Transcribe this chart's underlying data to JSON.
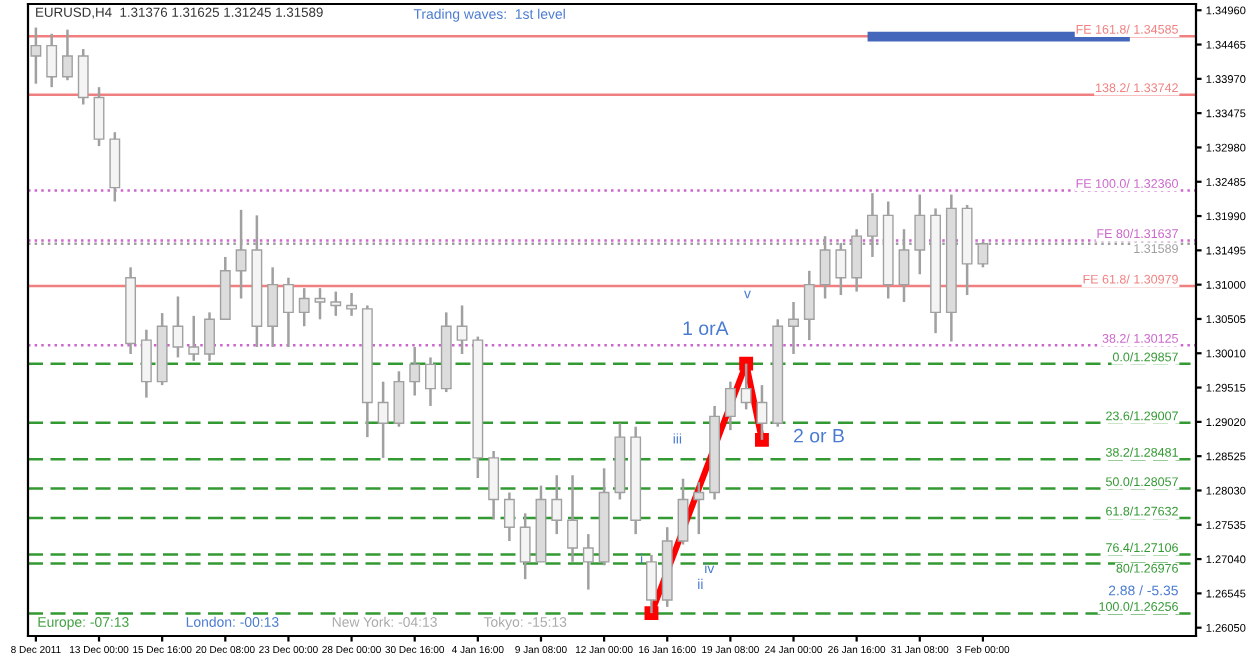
{
  "chart_data": {
    "type": "candlestick",
    "title": "EURUSD,H4  1.31376 1.31625 1.31245 1.31589",
    "color": "#a0a0a0",
    "categories": [
      "8 Dec 2011",
      null,
      null,
      null,
      "13 Dec 00:00",
      null,
      null,
      null,
      "15 Dec 16:00",
      null,
      null,
      null,
      "20 Dec 08:00",
      null,
      null,
      null,
      "23 Dec 00:00",
      null,
      null,
      null,
      "28 Dec 00:00",
      null,
      null,
      null,
      "30 Dec 16:00",
      null,
      null,
      null,
      "4 Jan 16:00",
      null,
      null,
      null,
      "9 Jan 08:00",
      null,
      null,
      null,
      "12 Jan 00:00",
      null,
      null,
      null,
      "16 Jan 16:00",
      null,
      null,
      null,
      "19 Jan 08:00",
      null,
      null,
      null,
      "24 Jan 00:00",
      null,
      null,
      null,
      "26 Jan 16:00",
      null,
      null,
      null,
      "31 Jan 08:00",
      null,
      null,
      null,
      "3 Feb 00:00",
      null,
      null,
      null,
      null,
      null,
      null,
      null,
      null,
      null,
      null,
      null,
      null,
      null
    ],
    "ohlc": [
      [
        1.343,
        1.3471,
        1.339,
        1.3445
      ],
      [
        1.3445,
        1.3462,
        1.3385,
        1.34
      ],
      [
        1.34,
        1.3468,
        1.3395,
        1.343
      ],
      [
        1.343,
        1.344,
        1.336,
        1.337
      ],
      [
        1.337,
        1.3385,
        1.33,
        1.331
      ],
      [
        1.331,
        1.332,
        1.322,
        1.324
      ],
      [
        1.311,
        1.3125,
        1.3,
        1.3015
      ],
      [
        1.302,
        1.3035,
        1.2937,
        1.296
      ],
      [
        1.296,
        1.3059,
        1.2955,
        1.304
      ],
      [
        1.304,
        1.3083,
        1.2995,
        1.301
      ],
      [
        1.301,
        1.3055,
        1.299,
        1.3
      ],
      [
        1.3,
        1.306,
        1.299,
        1.305
      ],
      [
        1.305,
        1.314,
        1.305,
        1.312
      ],
      [
        1.312,
        1.3208,
        1.308,
        1.315
      ],
      [
        1.315,
        1.32,
        1.301,
        1.304
      ],
      [
        1.304,
        1.3125,
        1.301,
        1.31
      ],
      [
        1.31,
        1.311,
        1.301,
        1.306
      ],
      [
        1.306,
        1.3095,
        1.304,
        1.308
      ],
      [
        1.308,
        1.3095,
        1.305,
        1.3075
      ],
      [
        1.3075,
        1.309,
        1.3055,
        1.307
      ],
      [
        1.307,
        1.3088,
        1.3055,
        1.3065
      ],
      [
        1.3065,
        1.307,
        1.288,
        1.293
      ],
      [
        1.293,
        1.296,
        1.285,
        1.29
      ],
      [
        1.29,
        1.2975,
        1.2895,
        1.296
      ],
      [
        1.296,
        1.301,
        1.294,
        1.2985
      ],
      [
        1.2985,
        1.2995,
        1.2925,
        1.295
      ],
      [
        1.295,
        1.306,
        1.2945,
        1.304
      ],
      [
        1.304,
        1.307,
        1.3,
        1.302
      ],
      [
        1.302,
        1.3025,
        1.2821,
        1.285
      ],
      [
        1.285,
        1.286,
        1.2761,
        1.279
      ],
      [
        1.279,
        1.28,
        1.273,
        1.275
      ],
      [
        1.275,
        1.277,
        1.2675,
        1.27
      ],
      [
        1.27,
        1.281,
        1.27,
        1.279
      ],
      [
        1.279,
        1.2825,
        1.274,
        1.276
      ],
      [
        1.276,
        1.2825,
        1.27,
        1.272
      ],
      [
        1.272,
        1.274,
        1.266,
        1.27
      ],
      [
        1.27,
        1.2835,
        1.2695,
        1.28
      ],
      [
        1.28,
        1.29,
        1.279,
        1.288
      ],
      [
        1.288,
        1.2895,
        1.274,
        1.276
      ],
      [
        1.27,
        1.271,
        1.2626,
        1.2645
      ],
      [
        1.2645,
        1.275,
        1.2635,
        1.273
      ],
      [
        1.273,
        1.282,
        1.2725,
        1.279
      ],
      [
        1.279,
        1.2815,
        1.274,
        1.28
      ],
      [
        1.28,
        1.2925,
        1.279,
        1.291
      ],
      [
        1.291,
        1.296,
        1.289,
        1.295
      ],
      [
        1.295,
        1.2986,
        1.292,
        1.293
      ],
      [
        1.293,
        1.2955,
        1.2876,
        1.29
      ],
      [
        1.29,
        1.305,
        1.2895,
        1.304
      ],
      [
        1.304,
        1.3075,
        1.3,
        1.305
      ],
      [
        1.305,
        1.312,
        1.302,
        1.31
      ],
      [
        1.31,
        1.317,
        1.308,
        1.315
      ],
      [
        1.315,
        1.316,
        1.3085,
        1.311
      ],
      [
        1.311,
        1.318,
        1.309,
        1.317
      ],
      [
        1.317,
        1.3232,
        1.314,
        1.32
      ],
      [
        1.32,
        1.322,
        1.308,
        1.31
      ],
      [
        1.31,
        1.318,
        1.3075,
        1.315
      ],
      [
        1.315,
        1.323,
        1.3115,
        1.32
      ],
      [
        1.32,
        1.321,
        1.303,
        1.306
      ],
      [
        1.306,
        1.323,
        1.3018,
        1.321
      ],
      [
        1.321,
        1.3215,
        1.3085,
        1.313
      ],
      [
        1.313,
        1.3162,
        1.3125,
        1.3159
      ],
      null,
      null,
      null,
      null,
      null,
      null,
      null,
      null,
      null,
      null,
      null,
      null,
      null
    ],
    "series": [
      {
        "type": "line",
        "color": "#ff0000",
        "marker": "square",
        "values": [
          null,
          null,
          null,
          null,
          null,
          null,
          null,
          null,
          null,
          null,
          null,
          null,
          null,
          null,
          null,
          null,
          null,
          null,
          null,
          null,
          null,
          null,
          null,
          null,
          null,
          null,
          null,
          null,
          null,
          null,
          null,
          null,
          null,
          null,
          null,
          null,
          null,
          null,
          null,
          1.2626,
          null,
          null,
          null,
          null,
          null,
          1.2986,
          1.2876,
          null,
          null,
          null,
          null,
          null,
          null,
          null,
          null,
          null,
          null,
          null,
          null,
          null,
          null,
          null,
          null,
          null,
          null,
          null,
          null,
          null,
          null,
          null,
          null,
          null,
          null,
          null
        ]
      },
      {
        "type": "line",
        "color": "#4466bb",
        "values": [
          null,
          null,
          null,
          null,
          null,
          null,
          null,
          null,
          null,
          null,
          null,
          null,
          null,
          null,
          null,
          null,
          null,
          null,
          null,
          null,
          null,
          null,
          null,
          null,
          null,
          null,
          null,
          null,
          null,
          null,
          null,
          null,
          null,
          null,
          null,
          null,
          null,
          null,
          null,
          null,
          null,
          null,
          null,
          null,
          null,
          null,
          null,
          null,
          null,
          null,
          null,
          null,
          null,
          1.3458,
          null,
          null,
          null,
          null,
          null,
          null,
          null,
          null,
          null,
          null,
          null,
          null,
          null,
          null,
          null,
          1.3458,
          null,
          null,
          null,
          null
        ]
      }
    ],
    "ylim": [
      1.2593,
      1.3505
    ],
    "yticks": [
      {
        "value": 1.2605,
        "label": "1.26050"
      },
      {
        "value": 1.26545,
        "label": "1.26545"
      },
      {
        "value": 1.2704,
        "label": "1.27040"
      },
      {
        "value": 1.27535,
        "label": "1.27535"
      },
      {
        "value": 1.2803,
        "label": "1.28030"
      },
      {
        "value": 1.28525,
        "label": "1.28525"
      },
      {
        "value": 1.2902,
        "label": "1.29020"
      },
      {
        "value": 1.29515,
        "label": "1.29515"
      },
      {
        "value": 1.3001,
        "label": "1.30010"
      },
      {
        "value": 1.30505,
        "label": "1.30505"
      },
      {
        "value": 1.31,
        "label": "1.31000"
      },
      {
        "value": 1.31495,
        "label": "1.31495"
      },
      {
        "value": 1.3199,
        "label": "1.31990"
      },
      {
        "value": 1.32485,
        "label": "1.32485"
      },
      {
        "value": 1.3298,
        "label": "1.32980"
      },
      {
        "value": 1.33475,
        "label": "1.33475"
      },
      {
        "value": 1.3397,
        "label": "1.33970"
      },
      {
        "value": 1.34465,
        "label": "1.34465"
      },
      {
        "value": 1.3496,
        "label": "1.34960"
      }
    ],
    "ref_lines": [
      {
        "axis": "y",
        "value": 1.34585,
        "label": "FE 161.8/ 1.34585",
        "color": "#f08080",
        "line_style": "solid"
      },
      {
        "axis": "y",
        "value": 1.33742,
        "label": "138.2/ 1.33742",
        "color": "#f08080",
        "line_style": "solid"
      },
      {
        "axis": "y",
        "value": 1.3236,
        "label": "FE 100.0/ 1.32360",
        "color": "#cc66cc",
        "line_style": "dotted"
      },
      {
        "axis": "y",
        "value": 1.31637,
        "label": "FE 80/1.31637",
        "color": "#cc66cc",
        "line_style": "dotted"
      },
      {
        "axis": "y",
        "value": 1.31589,
        "label": "1.31589",
        "color": "#a0a0a0",
        "line_style": "dotted"
      },
      {
        "axis": "y",
        "value": 1.30979,
        "label": "FE 61.8/ 1.30979",
        "color": "#f08080",
        "line_style": "solid"
      },
      {
        "axis": "y",
        "value": 1.30125,
        "label": "38.2/ 1.30125",
        "color": "#cc66cc",
        "line_style": "dotted"
      },
      {
        "axis": "y",
        "value": 1.29857,
        "label": "0.0/1.29857",
        "color": "#339933",
        "line_style": "dashed"
      },
      {
        "axis": "y",
        "value": 1.29007,
        "label": "23.6/1.29007",
        "color": "#339933",
        "line_style": "dashed"
      },
      {
        "axis": "y",
        "value": 1.28481,
        "label": "38.2/1.28481",
        "color": "#339933",
        "line_style": "dashed"
      },
      {
        "axis": "y",
        "value": 1.28057,
        "label": "50.0/1.28057",
        "color": "#339933",
        "line_style": "dashed"
      },
      {
        "axis": "y",
        "value": 1.27632,
        "label": "61.8/1.27632",
        "color": "#339933",
        "line_style": "dashed"
      },
      {
        "axis": "y",
        "value": 1.27106,
        "label": "76.4/1.27106",
        "color": "#339933",
        "line_style": "dashed"
      },
      {
        "axis": "y",
        "value": 1.26976,
        "label": "80/1.26976",
        "color": "#339933",
        "line_style": "dashed"
      },
      {
        "axis": "y",
        "value": 1.26256,
        "label": "100.0/1.26256",
        "color": "#339933",
        "line_style": "dashed"
      }
    ],
    "annotations": [
      "Trading waves:  1st level",
      "1 orA",
      "2 or B",
      "i",
      "ii",
      "iii",
      "iv",
      "v",
      "Europe: -07:13",
      "London: -00:13",
      "New York: -04:13",
      "Tokyo: -15:13",
      "2.88 / -5.35"
    ],
    "grid": false,
    "legend": false
  }
}
